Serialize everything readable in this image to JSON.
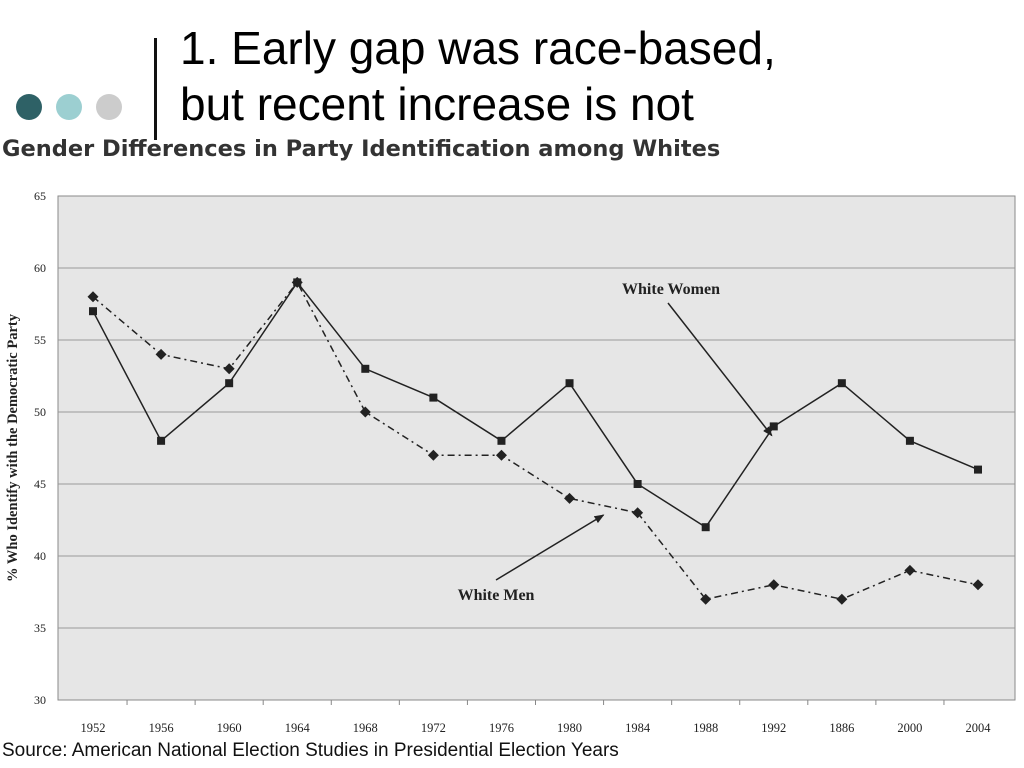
{
  "slide": {
    "title_line1": "1. Early gap was race-based,",
    "title_line2": "but recent increase is not",
    "dot_colors": [
      "#2e6166",
      "#9ccfd1",
      "#cccccc"
    ],
    "source": "Source: American National Election Studies in Presidential Election Years"
  },
  "chart_data": {
    "type": "line",
    "title": "Gender Differences in Party Identification among Whites",
    "xlabel": "",
    "ylabel": "% Who Identify with the Democratic Party",
    "categories": [
      "1952",
      "1956",
      "1960",
      "1964",
      "1968",
      "1972",
      "1976",
      "1980",
      "1984",
      "1988",
      "1992",
      "1886",
      "2000",
      "2004"
    ],
    "ylim": [
      30,
      65
    ],
    "yticks": [
      30,
      35,
      40,
      45,
      50,
      55,
      60,
      65
    ],
    "grid": "horizontal",
    "background": "#e6e6e6",
    "series": [
      {
        "name": "White Women",
        "marker": "square",
        "line": "solid",
        "color": "#222222",
        "values": [
          57,
          48,
          52,
          59,
          53,
          51,
          48,
          52,
          45,
          42,
          49,
          52,
          48,
          46
        ]
      },
      {
        "name": "White Men",
        "marker": "diamond",
        "line": "dash-dot",
        "color": "#222222",
        "values": [
          58,
          54,
          53,
          59,
          50,
          47,
          47,
          44,
          43,
          37,
          38,
          37,
          39,
          38
        ]
      }
    ],
    "annotations": [
      {
        "text": "White Women",
        "series": 0,
        "arrow_to": {
          "x": "1992",
          "y": 48.5
        }
      },
      {
        "text": "White Men",
        "series": 1,
        "arrow_to": {
          "x": "1980",
          "y": 42.5
        }
      }
    ]
  }
}
